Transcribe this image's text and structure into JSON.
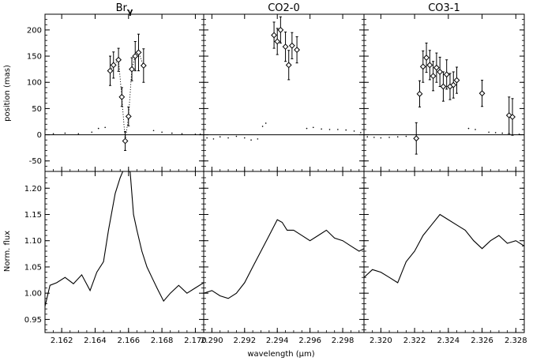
{
  "chart_data": {
    "type": "scatter",
    "columns": [
      {
        "title_main": "Br",
        "title_sub": "γ",
        "xlim": [
          2.161,
          2.1705
        ],
        "xticks": [
          2.162,
          2.164,
          2.166,
          2.168,
          2.17
        ],
        "xtick_labels": [
          "2.162",
          "2.164",
          "2.166",
          "2.168",
          "2.170"
        ]
      },
      {
        "title_main": "CO2-0",
        "title_sub": "",
        "xlim": [
          2.2895,
          2.2993
        ],
        "xticks": [
          2.29,
          2.292,
          2.294,
          2.296,
          2.298
        ],
        "xtick_labels": [
          "2.290",
          "2.292",
          "2.294",
          "2.296",
          "2.298"
        ]
      },
      {
        "title_main": "CO3-1",
        "title_sub": "",
        "xlim": [
          2.319,
          2.3285
        ],
        "xticks": [
          2.32,
          2.322,
          2.324,
          2.326,
          2.328
        ],
        "xtick_labels": [
          "2.320",
          "2.322",
          "2.324",
          "2.326",
          "2.328"
        ]
      }
    ],
    "xlabel": "wavelength (μm)",
    "top_row": {
      "ylabel": "position (mas)",
      "ylim": [
        -70,
        230
      ],
      "yticks": [
        -50,
        0,
        50,
        100,
        150,
        200
      ],
      "ytick_labels": [
        "-50",
        "0",
        "50",
        "100",
        "150",
        "200"
      ],
      "zero_line": 0,
      "panels": [
        {
          "points": [
            {
              "x": 2.1649,
              "y": 122,
              "err": 28
            },
            {
              "x": 2.1651,
              "y": 133,
              "err": 25
            },
            {
              "x": 2.1654,
              "y": 143,
              "err": 22
            },
            {
              "x": 2.1656,
              "y": 72,
              "err": 18
            },
            {
              "x": 2.1658,
              "y": -12,
              "err": 18
            },
            {
              "x": 2.166,
              "y": 35,
              "err": 18
            },
            {
              "x": 2.1662,
              "y": 125,
              "err": 22
            },
            {
              "x": 2.1664,
              "y": 150,
              "err": 28
            },
            {
              "x": 2.1666,
              "y": 157,
              "err": 35
            },
            {
              "x": 2.1669,
              "y": 132,
              "err": 32
            }
          ],
          "dotted_connect": true,
          "background_dots": [
            [
              2.1615,
              2
            ],
            [
              2.1622,
              3
            ],
            [
              2.163,
              2
            ],
            [
              2.1638,
              5
            ],
            [
              2.1642,
              12
            ],
            [
              2.1646,
              14
            ],
            [
              2.1675,
              8
            ],
            [
              2.168,
              5
            ],
            [
              2.1686,
              3
            ],
            [
              2.1692,
              2
            ],
            [
              2.17,
              1
            ],
            [
              2.1703,
              1
            ]
          ]
        },
        {
          "points": [
            {
              "x": 2.2938,
              "y": 190,
              "err": 25
            },
            {
              "x": 2.294,
              "y": 178,
              "err": 25
            },
            {
              "x": 2.2942,
              "y": 200,
              "err": 25
            },
            {
              "x": 2.2945,
              "y": 168,
              "err": 28
            },
            {
              "x": 2.2947,
              "y": 133,
              "err": 28
            },
            {
              "x": 2.2949,
              "y": 170,
              "err": 25
            },
            {
              "x": 2.2952,
              "y": 162,
              "err": 25
            }
          ],
          "dotted_connect": false,
          "background_dots": [
            [
              2.2897,
              -6
            ],
            [
              2.2901,
              -8
            ],
            [
              2.2905,
              -4
            ],
            [
              2.291,
              -6
            ],
            [
              2.2915,
              -3
            ],
            [
              2.292,
              -6
            ],
            [
              2.2924,
              -10
            ],
            [
              2.2928,
              -8
            ],
            [
              2.2931,
              16
            ],
            [
              2.2933,
              22
            ],
            [
              2.2958,
              12
            ],
            [
              2.2962,
              14
            ],
            [
              2.2967,
              11
            ],
            [
              2.2972,
              10
            ],
            [
              2.2977,
              10
            ],
            [
              2.2982,
              9
            ],
            [
              2.2987,
              7
            ],
            [
              2.2991,
              4
            ]
          ]
        },
        {
          "points": [
            {
              "x": 2.3221,
              "y": -7,
              "err": 30
            },
            {
              "x": 2.3223,
              "y": 78,
              "err": 25
            },
            {
              "x": 2.3225,
              "y": 130,
              "err": 30
            },
            {
              "x": 2.3227,
              "y": 147,
              "err": 28
            },
            {
              "x": 2.3229,
              "y": 133,
              "err": 28
            },
            {
              "x": 2.3231,
              "y": 112,
              "err": 28
            },
            {
              "x": 2.3233,
              "y": 128,
              "err": 28
            },
            {
              "x": 2.3235,
              "y": 120,
              "err": 28
            },
            {
              "x": 2.3237,
              "y": 92,
              "err": 28
            },
            {
              "x": 2.3239,
              "y": 115,
              "err": 28
            },
            {
              "x": 2.3241,
              "y": 92,
              "err": 25
            },
            {
              "x": 2.3243,
              "y": 95,
              "err": 25
            },
            {
              "x": 2.3245,
              "y": 104,
              "err": 25
            },
            {
              "x": 2.326,
              "y": 79,
              "err": 25
            },
            {
              "x": 2.3276,
              "y": 37,
              "err": 35
            },
            {
              "x": 2.3278,
              "y": 34,
              "err": 35
            }
          ],
          "dotted_connect": false,
          "background_dots": [
            [
              2.3192,
              -4
            ],
            [
              2.3196,
              -5
            ],
            [
              2.32,
              -6
            ],
            [
              2.3205,
              -5
            ],
            [
              2.321,
              -4
            ],
            [
              2.3215,
              -3
            ],
            [
              2.3252,
              12
            ],
            [
              2.3256,
              10
            ],
            [
              2.3264,
              5
            ],
            [
              2.3268,
              4
            ],
            [
              2.3272,
              3
            ],
            [
              2.3282,
              1
            ]
          ]
        }
      ]
    },
    "bottom_row": {
      "ylabel": "Norm. flux",
      "ylim": [
        0.925,
        1.232
      ],
      "yticks": [
        0.95,
        1.0,
        1.05,
        1.1,
        1.15,
        1.2
      ],
      "ytick_labels": [
        "0.95",
        "1.00",
        "1.05",
        "1.10",
        "1.15",
        "1.20"
      ],
      "panels": [
        {
          "x": [
            2.161,
            2.1613,
            2.1617,
            2.1622,
            2.1627,
            2.1632,
            2.1637,
            2.1641,
            2.1645,
            2.1648,
            2.1652,
            2.1655,
            2.1657,
            2.1659,
            2.1661,
            2.1663,
            2.1665,
            2.1668,
            2.1671,
            2.1674,
            2.1677,
            2.1681,
            2.1685,
            2.169,
            2.1695,
            2.17,
            2.1705
          ],
          "y": [
            0.975,
            1.015,
            1.02,
            1.03,
            1.018,
            1.035,
            1.005,
            1.04,
            1.06,
            1.12,
            1.19,
            1.22,
            1.235,
            1.24,
            1.23,
            1.15,
            1.12,
            1.08,
            1.05,
            1.03,
            1.01,
            0.985,
            1.0,
            1.015,
            1.0,
            1.01,
            1.02
          ]
        },
        {
          "x": [
            2.2895,
            2.29,
            2.2905,
            2.291,
            2.2915,
            2.292,
            2.2925,
            2.293,
            2.2935,
            2.294,
            2.2943,
            2.2946,
            2.295,
            2.2955,
            2.296,
            2.2965,
            2.297,
            2.2975,
            2.298,
            2.2985,
            2.299,
            2.2993
          ],
          "y": [
            1.0,
            1.005,
            0.995,
            0.99,
            1.0,
            1.02,
            1.05,
            1.08,
            1.11,
            1.14,
            1.135,
            1.12,
            1.12,
            1.11,
            1.1,
            1.11,
            1.12,
            1.105,
            1.1,
            1.09,
            1.08,
            1.085
          ]
        },
        {
          "x": [
            2.319,
            2.3195,
            2.32,
            2.3205,
            2.321,
            2.3215,
            2.322,
            2.3225,
            2.323,
            2.3235,
            2.324,
            2.3245,
            2.325,
            2.3255,
            2.326,
            2.3265,
            2.327,
            2.3275,
            2.328,
            2.3285
          ],
          "y": [
            1.03,
            1.045,
            1.04,
            1.03,
            1.02,
            1.06,
            1.08,
            1.11,
            1.13,
            1.15,
            1.14,
            1.13,
            1.12,
            1.1,
            1.085,
            1.1,
            1.11,
            1.095,
            1.1,
            1.09
          ]
        }
      ]
    }
  }
}
